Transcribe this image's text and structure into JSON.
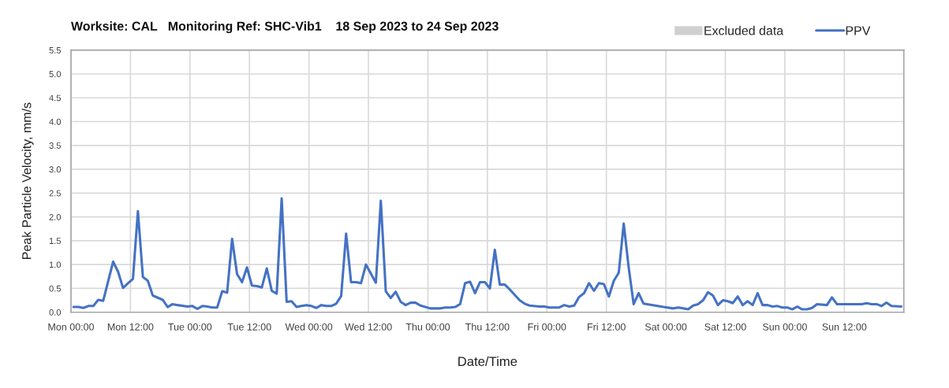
{
  "chart_data": {
    "type": "line",
    "title": "Worksite: CAL   Monitoring Ref: SHC-Vib1    18 Sep 2023 to 24 Sep 2023",
    "xlabel": "Date/Time",
    "ylabel": "Peak Particle Velocity, mm/s",
    "x": [
      "2023-09-18T00:30",
      "2023-09-18T01:30",
      "2023-09-18T02:30",
      "2023-09-18T03:30",
      "2023-09-18T04:30",
      "2023-09-18T05:30",
      "2023-09-18T06:30",
      "2023-09-18T08:30",
      "2023-09-18T09:30",
      "2023-09-18T10:30",
      "2023-09-18T11:30",
      "2023-09-18T12:30",
      "2023-09-18T13:30",
      "2023-09-18T14:30",
      "2023-09-18T15:30",
      "2023-09-18T16:30",
      "2023-09-18T18:30",
      "2023-09-18T19:30",
      "2023-09-18T20:30",
      "2023-09-18T21:30",
      "2023-09-18T23:30",
      "2023-09-19T00:30",
      "2023-09-19T01:30",
      "2023-09-19T02:30",
      "2023-09-19T03:30",
      "2023-09-19T04:30",
      "2023-09-19T05:30",
      "2023-09-19T06:30",
      "2023-09-19T07:30",
      "2023-09-19T08:30",
      "2023-09-19T09:30",
      "2023-09-19T10:30",
      "2023-09-19T11:30",
      "2023-09-19T12:30",
      "2023-09-19T13:30",
      "2023-09-19T14:30",
      "2023-09-19T15:30",
      "2023-09-19T16:30",
      "2023-09-19T17:30",
      "2023-09-19T18:30",
      "2023-09-19T19:30",
      "2023-09-19T20:30",
      "2023-09-19T21:30",
      "2023-09-19T22:30",
      "2023-09-19T23:30",
      "2023-09-20T00:30",
      "2023-09-20T01:30",
      "2023-09-20T02:30",
      "2023-09-20T03:30",
      "2023-09-20T04:30",
      "2023-09-20T05:30",
      "2023-09-20T06:30",
      "2023-09-20T07:30",
      "2023-09-20T08:30",
      "2023-09-20T09:30",
      "2023-09-20T10:30",
      "2023-09-20T11:30",
      "2023-09-20T13:30",
      "2023-09-20T14:30",
      "2023-09-20T15:30",
      "2023-09-20T16:30",
      "2023-09-20T17:30",
      "2023-09-20T18:30",
      "2023-09-20T19:30",
      "2023-09-20T20:30",
      "2023-09-20T21:30",
      "2023-09-20T22:30",
      "2023-09-21T00:30",
      "2023-09-21T02:30",
      "2023-09-21T03:30",
      "2023-09-21T04:30",
      "2023-09-21T05:30",
      "2023-09-21T06:30",
      "2023-09-21T07:30",
      "2023-09-21T08:30",
      "2023-09-21T09:30",
      "2023-09-21T10:30",
      "2023-09-21T11:30",
      "2023-09-21T12:30",
      "2023-09-21T13:30",
      "2023-09-21T14:30",
      "2023-09-21T15:30",
      "2023-09-21T16:30",
      "2023-09-21T18:30",
      "2023-09-21T19:30",
      "2023-09-21T20:30",
      "2023-09-21T22:30",
      "2023-09-21T23:30",
      "2023-09-22T00:30",
      "2023-09-22T02:30",
      "2023-09-22T03:30",
      "2023-09-22T04:30",
      "2023-09-22T05:30",
      "2023-09-22T06:30",
      "2023-09-22T07:30",
      "2023-09-22T08:30",
      "2023-09-22T09:30",
      "2023-09-22T10:30",
      "2023-09-22T11:30",
      "2023-09-22T12:30",
      "2023-09-22T13:30",
      "2023-09-22T14:30",
      "2023-09-22T15:30",
      "2023-09-22T16:30",
      "2023-09-22T17:30",
      "2023-09-22T18:30",
      "2023-09-22T19:30",
      "2023-09-22T23:30",
      "2023-09-23T01:30",
      "2023-09-23T02:30",
      "2023-09-23T03:30",
      "2023-09-23T04:30",
      "2023-09-23T05:30",
      "2023-09-23T06:30",
      "2023-09-23T07:30",
      "2023-09-23T08:30",
      "2023-09-23T09:30",
      "2023-09-23T10:30",
      "2023-09-23T11:30",
      "2023-09-23T12:30",
      "2023-09-23T13:30",
      "2023-09-23T14:30",
      "2023-09-23T15:30",
      "2023-09-23T16:30",
      "2023-09-23T17:30",
      "2023-09-23T18:30",
      "2023-09-23T19:30",
      "2023-09-23T20:30",
      "2023-09-23T21:30",
      "2023-09-23T22:30",
      "2023-09-23T23:30",
      "2023-09-24T00:30",
      "2023-09-24T01:30",
      "2023-09-24T02:30",
      "2023-09-24T03:30",
      "2023-09-24T04:30",
      "2023-09-24T05:30",
      "2023-09-24T06:30",
      "2023-09-24T08:30",
      "2023-09-24T09:30",
      "2023-09-24T10:30",
      "2023-09-24T11:30",
      "2023-09-24T15:30",
      "2023-09-24T16:30",
      "2023-09-24T17:30",
      "2023-09-24T18:30",
      "2023-09-24T19:30",
      "2023-09-24T20:30",
      "2023-09-24T21:30",
      "2023-09-24T23:30"
    ],
    "series": [
      {
        "name": "Excluded data",
        "type": "bar",
        "color": "#d0d0d0",
        "values": [
          null,
          null,
          null,
          null,
          null,
          null,
          null,
          null,
          null,
          null,
          null,
          null,
          null,
          null,
          null,
          null,
          null,
          null,
          null,
          null,
          null,
          null,
          null,
          null,
          null,
          null,
          null,
          null,
          null,
          null,
          null,
          null,
          null,
          null,
          null,
          null,
          null,
          null,
          null,
          null,
          null,
          null,
          null,
          null,
          null,
          null,
          null,
          null,
          null,
          null,
          null,
          null,
          null,
          null,
          null,
          null,
          null,
          null,
          null,
          null,
          null,
          null,
          null,
          null,
          null,
          null,
          null,
          null,
          null,
          null,
          null,
          null,
          null,
          null,
          null,
          null,
          null,
          null,
          null,
          null,
          null,
          null,
          null,
          null,
          null,
          null,
          null,
          null,
          null,
          null,
          null,
          null,
          null,
          null,
          null,
          null,
          null,
          null,
          null,
          null,
          null,
          null,
          null,
          null,
          null,
          null,
          null,
          null,
          null,
          null,
          null,
          null,
          null,
          null,
          null,
          null,
          null,
          null,
          null,
          null,
          null,
          null,
          null,
          null,
          null,
          null,
          null,
          null,
          null,
          null,
          null,
          null,
          null,
          null,
          null,
          null,
          null,
          null,
          null,
          null,
          null,
          null,
          null,
          null,
          null,
          null,
          null,
          null,
          null,
          null
        ]
      },
      {
        "name": "PPV",
        "color": "#4472c4",
        "values": [
          0.11,
          0.11,
          0.09,
          0.13,
          0.13,
          0.26,
          0.24,
          1.06,
          0.85,
          0.51,
          0.61,
          0.7,
          2.12,
          0.74,
          0.66,
          0.35,
          0.26,
          0.11,
          0.17,
          0.15,
          0.12,
          0.13,
          0.07,
          0.13,
          0.12,
          0.1,
          0.1,
          0.44,
          0.41,
          1.54,
          0.8,
          0.63,
          0.94,
          0.56,
          0.55,
          0.52,
          0.92,
          0.45,
          0.39,
          2.39,
          0.22,
          0.23,
          0.11,
          0.13,
          0.15,
          0.13,
          0.09,
          0.15,
          0.13,
          0.13,
          0.18,
          0.34,
          1.65,
          0.63,
          0.63,
          0.61,
          1.0,
          0.62,
          2.34,
          0.44,
          0.3,
          0.43,
          0.22,
          0.15,
          0.2,
          0.2,
          0.14,
          0.08,
          0.08,
          0.1,
          0.1,
          0.11,
          0.17,
          0.61,
          0.64,
          0.4,
          0.63,
          0.63,
          0.5,
          1.31,
          0.58,
          0.58,
          0.48,
          0.25,
          0.18,
          0.14,
          0.12,
          0.12,
          0.1,
          0.1,
          0.15,
          0.12,
          0.14,
          0.32,
          0.4,
          0.61,
          0.45,
          0.61,
          0.59,
          0.33,
          0.66,
          0.83,
          1.86,
          0.94,
          0.17,
          0.4,
          0.18,
          0.11,
          0.08,
          0.1,
          0.08,
          0.06,
          0.14,
          0.17,
          0.25,
          0.42,
          0.35,
          0.15,
          0.25,
          0.23,
          0.19,
          0.33,
          0.15,
          0.23,
          0.15,
          0.4,
          0.15,
          0.15,
          0.12,
          0.13,
          0.1,
          0.1,
          0.06,
          0.12,
          0.06,
          0.06,
          0.09,
          0.17,
          0.15,
          0.31,
          0.17,
          0.17,
          0.17,
          0.19,
          0.17,
          0.17,
          0.13,
          0.2,
          0.13,
          0.12
        ]
      }
    ],
    "xlim": [
      "2023-09-18T00:00",
      "2023-09-25T00:00"
    ],
    "xticks": [
      {
        "value": "2023-09-18T00:00",
        "label": "Mon 00:00"
      },
      {
        "value": "2023-09-18T12:00",
        "label": "Mon 12:00"
      },
      {
        "value": "2023-09-19T00:00",
        "label": "Tue 00:00"
      },
      {
        "value": "2023-09-19T12:00",
        "label": "Tue 12:00"
      },
      {
        "value": "2023-09-20T00:00",
        "label": "Wed 00:00"
      },
      {
        "value": "2023-09-20T12:00",
        "label": "Wed 12:00"
      },
      {
        "value": "2023-09-21T00:00",
        "label": "Thu 00:00"
      },
      {
        "value": "2023-09-21T12:00",
        "label": "Thu 12:00"
      },
      {
        "value": "2023-09-22T00:00",
        "label": "Fri 00:00"
      },
      {
        "value": "2023-09-22T12:00",
        "label": "Fri 12:00"
      },
      {
        "value": "2023-09-23T00:00",
        "label": "Sat 00:00"
      },
      {
        "value": "2023-09-23T12:00",
        "label": "Sat 12:00"
      },
      {
        "value": "2023-09-24T00:00",
        "label": "Sun 00:00"
      },
      {
        "value": "2023-09-24T12:00",
        "label": "Sun 12:00"
      },
      {
        "value": "2023-09-25T00:00",
        "label": null
      }
    ],
    "ylim": [
      0,
      5.5
    ],
    "yticks": [
      {
        "value": 0,
        "label": "0.0"
      },
      {
        "value": 0.5,
        "label": "0.5"
      },
      {
        "value": 1,
        "label": "1.0"
      },
      {
        "value": 1.5,
        "label": "1.5"
      },
      {
        "value": 2,
        "label": "2.0"
      },
      {
        "value": 2.5,
        "label": "2.5"
      },
      {
        "value": 3,
        "label": "3.0"
      },
      {
        "value": 3.5,
        "label": "3.5"
      },
      {
        "value": 4,
        "label": "4.0"
      },
      {
        "value": 4.5,
        "label": "4.5"
      },
      {
        "value": 5,
        "label": "5.0"
      },
      {
        "value": 5.5,
        "label": "5.5"
      }
    ],
    "grid": true,
    "legend": "top right"
  }
}
